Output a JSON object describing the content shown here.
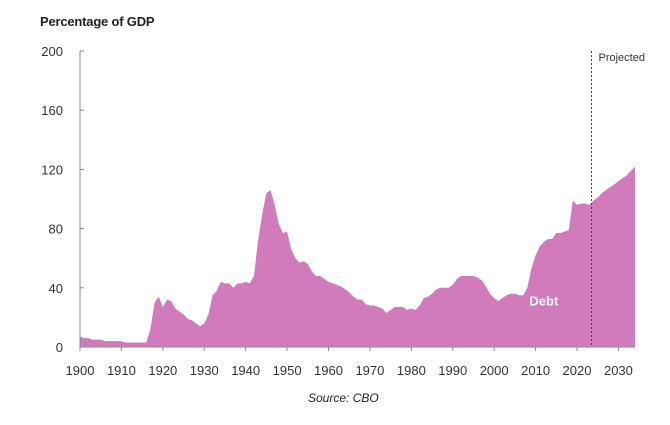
{
  "chart_data": {
    "type": "area",
    "ylabel": "Percentage of GDP",
    "xlabel": "",
    "xlim": [
      1900,
      2034
    ],
    "ylim": [
      0,
      200
    ],
    "x_ticks": [
      "1900",
      "1910",
      "1920",
      "1930",
      "1940",
      "1950",
      "1960",
      "1970",
      "1980",
      "1990",
      "2000",
      "2010",
      "2020",
      "2030"
    ],
    "y_ticks": [
      "0",
      "40",
      "80",
      "120",
      "160",
      "200"
    ],
    "projection_start": 2023.5,
    "projection_label": "Projected",
    "series": [
      {
        "name": "Debt",
        "color": "#d17bbd",
        "x": [
          1900,
          1901,
          1902,
          1903,
          1904,
          1905,
          1906,
          1907,
          1908,
          1909,
          1910,
          1911,
          1912,
          1913,
          1914,
          1915,
          1916,
          1917,
          1918,
          1919,
          1920,
          1921,
          1922,
          1923,
          1924,
          1925,
          1926,
          1927,
          1928,
          1929,
          1930,
          1931,
          1932,
          1933,
          1934,
          1935,
          1936,
          1937,
          1938,
          1939,
          1940,
          1941,
          1942,
          1943,
          1944,
          1945,
          1946,
          1947,
          1948,
          1949,
          1950,
          1951,
          1952,
          1953,
          1954,
          1955,
          1956,
          1957,
          1958,
          1959,
          1960,
          1961,
          1962,
          1963,
          1964,
          1965,
          1966,
          1967,
          1968,
          1969,
          1970,
          1971,
          1972,
          1973,
          1974,
          1975,
          1976,
          1977,
          1978,
          1979,
          1980,
          1981,
          1982,
          1983,
          1984,
          1985,
          1986,
          1987,
          1988,
          1989,
          1990,
          1991,
          1992,
          1993,
          1994,
          1995,
          1996,
          1997,
          1998,
          1999,
          2000,
          2001,
          2002,
          2003,
          2004,
          2005,
          2006,
          2007,
          2008,
          2009,
          2010,
          2011,
          2012,
          2013,
          2014,
          2015,
          2016,
          2017,
          2018,
          2019,
          2020,
          2021,
          2022,
          2023,
          2024,
          2025,
          2026,
          2027,
          2028,
          2029,
          2030,
          2031,
          2032,
          2033,
          2034
        ],
        "values": [
          7,
          6,
          6,
          5,
          5,
          5,
          4,
          4,
          4,
          4,
          4,
          3,
          3,
          3,
          3,
          3,
          3,
          12,
          30,
          34,
          27,
          32,
          31,
          26,
          24,
          22,
          19,
          18,
          16,
          14,
          16,
          22,
          35,
          38,
          44,
          43,
          43,
          40,
          43,
          43,
          44,
          43,
          48,
          72,
          90,
          104,
          106,
          96,
          83,
          77,
          78,
          66,
          60,
          57,
          58,
          56,
          51,
          48,
          48,
          46,
          44,
          43,
          42,
          41,
          39,
          37,
          34,
          32,
          32,
          29,
          28,
          28,
          27,
          26,
          23,
          25,
          27,
          27,
          27,
          25,
          26,
          25,
          28,
          33,
          34,
          36,
          39,
          40,
          40,
          40,
          42,
          46,
          48,
          48,
          48,
          48,
          47,
          45,
          41,
          36,
          33,
          31,
          33,
          35,
          36,
          36,
          35,
          35,
          40,
          53,
          62,
          68,
          71,
          73,
          73,
          77,
          77,
          78,
          79,
          99,
          96,
          97,
          97,
          96,
          99,
          101,
          104,
          106,
          108,
          110,
          112,
          114,
          116,
          119,
          122
        ]
      }
    ]
  },
  "source": "Source: CBO"
}
